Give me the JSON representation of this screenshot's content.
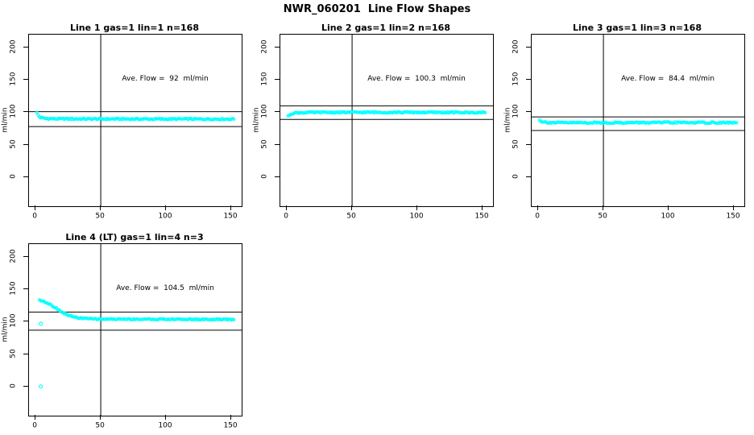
{
  "colors": {
    "points": "#00ffff",
    "axis": "#000000",
    "background": "#ffffff"
  },
  "chart_data": {
    "type": "scatter",
    "title": "NWR_060201  Line Flow Shapes",
    "ylabel": "ml/min",
    "x_ticks": [
      "0",
      "50",
      "100",
      "150"
    ],
    "x_tick_values": [
      0,
      50,
      100,
      150
    ],
    "y_ticks": [
      "0",
      "50",
      "100",
      "150",
      "200"
    ],
    "y_tick_values": [
      0,
      50,
      100,
      150,
      200
    ],
    "x_range": [
      -5,
      158
    ],
    "y_range": [
      -45,
      220
    ],
    "vline_x": 50,
    "grid": false,
    "legend": "none",
    "annotation_anchor": {
      "x": 100,
      "y": 150
    },
    "panels": [
      {
        "title": "Line 1 gas=1 lin=1 n=168",
        "annotation": "Ave. Flow =  92  ml/min",
        "ave_flow": 92,
        "gas": 1,
        "lin": 1,
        "n": 168,
        "ref_lines": [
          101,
          78
        ],
        "noise": 1.1,
        "series_keypoints": [
          [
            1,
            99.5
          ],
          [
            2,
            95.5
          ],
          [
            3,
            93
          ],
          [
            4,
            92
          ],
          [
            6,
            91
          ],
          [
            9,
            90.3
          ],
          [
            14,
            90
          ],
          [
            40,
            89.8
          ],
          [
            90,
            89.6
          ],
          [
            152,
            89.6
          ]
        ],
        "extra_points": []
      },
      {
        "title": "Line 2 gas=1 lin=2 n=168",
        "annotation": "Ave. Flow =  100.3  ml/min",
        "ave_flow": 100.3,
        "gas": 1,
        "lin": 2,
        "n": 168,
        "ref_lines": [
          110,
          89
        ],
        "noise": 1.1,
        "series_keypoints": [
          [
            1,
            93.5
          ],
          [
            2,
            96
          ],
          [
            3,
            97.5
          ],
          [
            4,
            98.3
          ],
          [
            6,
            99
          ],
          [
            10,
            99.5
          ],
          [
            20,
            99.8
          ],
          [
            60,
            100
          ],
          [
            110,
            99.9
          ],
          [
            152,
            99.6
          ]
        ],
        "extra_points": []
      },
      {
        "title": "Line 3 gas=1 lin=3 n=168",
        "annotation": "Ave. Flow =  84.4  ml/min",
        "ave_flow": 84.4,
        "gas": 1,
        "lin": 3,
        "n": 168,
        "ref_lines": [
          93,
          72
        ],
        "noise": 1.1,
        "series_keypoints": [
          [
            1,
            89
          ],
          [
            2,
            86.5
          ],
          [
            3,
            85.5
          ],
          [
            5,
            84.8
          ],
          [
            8,
            84.3
          ],
          [
            14,
            84
          ],
          [
            60,
            84
          ],
          [
            110,
            84.2
          ],
          [
            152,
            83.9
          ]
        ],
        "extra_points": []
      },
      {
        "title": "Line 4 (LT) gas=1 lin=4 n=3",
        "annotation": "Ave. Flow =  104.5  ml/min",
        "ave_flow": 104.5,
        "gas": 1,
        "lin": 4,
        "n": 3,
        "ref_lines": [
          115,
          87
        ],
        "noise": 0.9,
        "series_keypoints": [
          [
            3,
            134
          ],
          [
            6,
            132
          ],
          [
            9,
            129
          ],
          [
            12,
            126
          ],
          [
            15,
            122
          ],
          [
            18,
            118
          ],
          [
            21,
            114
          ],
          [
            24,
            111
          ],
          [
            28,
            108
          ],
          [
            33,
            106
          ],
          [
            40,
            104.8
          ],
          [
            50,
            104.2
          ],
          [
            80,
            104
          ],
          [
            120,
            103.8
          ],
          [
            152,
            103.5
          ]
        ],
        "extra_points": [
          [
            4,
            97
          ],
          [
            4,
            0
          ]
        ]
      }
    ]
  }
}
